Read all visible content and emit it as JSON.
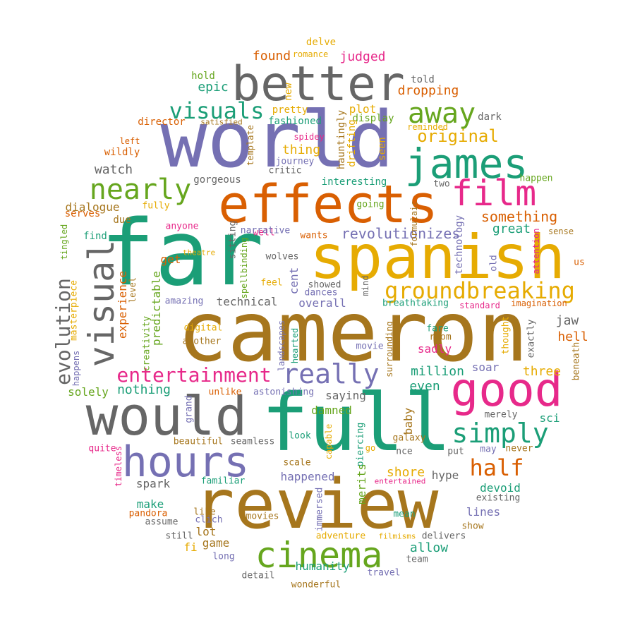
{
  "palette": {
    "teal": "#1b9e77",
    "orange": "#d95f02",
    "purple": "#7570b3",
    "pink": "#e7298a",
    "green": "#66a61e",
    "gold": "#e6ab02",
    "brown": "#a6761d",
    "gray": "#666666"
  },
  "words": [
    {
      "text": "cameron",
      "color": "#a6761d"
    },
    {
      "text": "far",
      "color": "#1b9e77"
    },
    {
      "text": "world",
      "color": "#7570b3"
    },
    {
      "text": "full",
      "color": "#1b9e77"
    },
    {
      "text": "review",
      "color": "#a6761d"
    },
    {
      "text": "spanish",
      "color": "#e6ab02"
    },
    {
      "text": "better",
      "color": "#666666"
    },
    {
      "text": "effects",
      "color": "#d95f02"
    },
    {
      "text": "would",
      "color": "#666666"
    },
    {
      "text": "good",
      "color": "#e7298a"
    },
    {
      "text": "james",
      "color": "#1b9e77"
    },
    {
      "text": "hours",
      "color": "#7570b3"
    },
    {
      "text": "cinema",
      "color": "#66a61e"
    },
    {
      "text": "visual",
      "color": "#666666"
    },
    {
      "text": "film",
      "color": "#e7298a"
    },
    {
      "text": "away",
      "color": "#66a61e"
    },
    {
      "text": "nearly",
      "color": "#66a61e"
    },
    {
      "text": "really",
      "color": "#7570b3"
    },
    {
      "text": "simply",
      "color": "#1b9e77"
    },
    {
      "text": "groundbreaking",
      "color": "#e6ab02"
    },
    {
      "text": "visuals",
      "color": "#1b9e77"
    },
    {
      "text": "half",
      "color": "#d95f02"
    },
    {
      "text": "entertainment",
      "color": "#e7298a"
    },
    {
      "text": "evolution",
      "color": "#666666"
    },
    {
      "text": "original",
      "color": "#e6ab02"
    },
    {
      "text": "revolutionizes",
      "color": "#7570b3"
    },
    {
      "text": "something",
      "color": "#d95f02"
    },
    {
      "text": "dropping",
      "color": "#d95f02"
    },
    {
      "text": "judged",
      "color": "#e7298a"
    },
    {
      "text": "found",
      "color": "#d95f02"
    },
    {
      "text": "romance",
      "color": "#e6ab02"
    },
    {
      "text": "delve",
      "color": "#e6ab02"
    },
    {
      "text": "epic",
      "color": "#1b9e77"
    },
    {
      "text": "hold",
      "color": "#66a61e"
    },
    {
      "text": "told",
      "color": "#666666"
    },
    {
      "text": "new",
      "color": "#e6ab02"
    },
    {
      "text": "pretty",
      "color": "#e6ab02"
    },
    {
      "text": "fashioned",
      "color": "#1b9e77"
    },
    {
      "text": "plot",
      "color": "#e6ab02"
    },
    {
      "text": "display",
      "color": "#66a61e"
    },
    {
      "text": "dark",
      "color": "#666666"
    },
    {
      "text": "director",
      "color": "#d95f02"
    },
    {
      "text": "satisfied",
      "color": "#a6761d"
    },
    {
      "text": "reminded",
      "color": "#e6ab02"
    },
    {
      "text": "left",
      "color": "#d95f02"
    },
    {
      "text": "wildly",
      "color": "#d95f02"
    },
    {
      "text": "watch",
      "color": "#666666"
    },
    {
      "text": "thing",
      "color": "#e6ab02"
    },
    {
      "text": "spidey",
      "color": "#e7298a"
    },
    {
      "text": "journey",
      "color": "#7570b3"
    },
    {
      "text": "critic",
      "color": "#666666"
    },
    {
      "text": "template",
      "color": "#a6761d"
    },
    {
      "text": "hauntingly",
      "color": "#a6761d"
    },
    {
      "text": "drifting",
      "color": "#e6ab02"
    },
    {
      "text": "seen",
      "color": "#e6ab02"
    },
    {
      "text": "gorgeous",
      "color": "#666666"
    },
    {
      "text": "interesting",
      "color": "#1b9e77"
    },
    {
      "text": "two",
      "color": "#666666"
    },
    {
      "text": "happen",
      "color": "#66a61e"
    },
    {
      "text": "dialogue",
      "color": "#a6761d"
    },
    {
      "text": "fully",
      "color": "#e6ab02"
    },
    {
      "text": "serves",
      "color": "#d95f02"
    },
    {
      "text": "due",
      "color": "#a6761d"
    },
    {
      "text": "find",
      "color": "#1b9e77"
    },
    {
      "text": "anyone",
      "color": "#e7298a"
    },
    {
      "text": "well",
      "color": "#e7298a"
    },
    {
      "text": "going",
      "color": "#66a61e"
    },
    {
      "text": "formulaic",
      "color": "#a6761d"
    },
    {
      "text": "technology",
      "color": "#7570b3"
    },
    {
      "text": "great",
      "color": "#1b9e77"
    },
    {
      "text": "sense",
      "color": "#a6761d"
    },
    {
      "text": "tingled",
      "color": "#66a61e"
    },
    {
      "text": "sitting",
      "color": "#666666"
    },
    {
      "text": "narrative",
      "color": "#7570b3"
    },
    {
      "text": "wants",
      "color": "#d95f02"
    },
    {
      "text": "attention",
      "color": "#e7298a"
    },
    {
      "text": "us",
      "color": "#d95f02"
    },
    {
      "text": "experience",
      "color": "#d95f02"
    },
    {
      "text": "get",
      "color": "#d95f02"
    },
    {
      "text": "theatre",
      "color": "#e6ab02"
    },
    {
      "text": "spellbinding",
      "color": "#66a61e"
    },
    {
      "text": "wolves",
      "color": "#666666"
    },
    {
      "text": "old",
      "color": "#7570b3"
    },
    {
      "text": "predictable",
      "color": "#66a61e"
    },
    {
      "text": "feel",
      "color": "#e6ab02"
    },
    {
      "text": "showed",
      "color": "#666666"
    },
    {
      "text": "dances",
      "color": "#7570b3"
    },
    {
      "text": "cent",
      "color": "#7570b3"
    },
    {
      "text": "mind",
      "color": "#666666"
    },
    {
      "text": "level",
      "color": "#a6761d"
    },
    {
      "text": "masterpiece",
      "color": "#e6ab02"
    },
    {
      "text": "amazing",
      "color": "#7570b3"
    },
    {
      "text": "technical",
      "color": "#666666"
    },
    {
      "text": "overall",
      "color": "#7570b3"
    },
    {
      "text": "breathtaking",
      "color": "#1b9e77"
    },
    {
      "text": "standard",
      "color": "#e7298a"
    },
    {
      "text": "imagination",
      "color": "#d95f02"
    },
    {
      "text": "jaw",
      "color": "#666666"
    },
    {
      "text": "hell",
      "color": "#d95f02"
    },
    {
      "text": "creativity",
      "color": "#66a61e"
    },
    {
      "text": "digital",
      "color": "#e6ab02"
    },
    {
      "text": "another",
      "color": "#a6761d"
    },
    {
      "text": "landscapes",
      "color": "#7570b3"
    },
    {
      "text": "hearted",
      "color": "#1b9e77"
    },
    {
      "text": "surrounding",
      "color": "#a6761d"
    },
    {
      "text": "fare",
      "color": "#1b9e77"
    },
    {
      "text": "room",
      "color": "#a6761d"
    },
    {
      "text": "thought",
      "color": "#e6ab02"
    },
    {
      "text": "exactly",
      "color": "#666666"
    },
    {
      "text": "beneath",
      "color": "#a6761d"
    },
    {
      "text": "sadly",
      "color": "#e7298a"
    },
    {
      "text": "movie",
      "color": "#7570b3"
    },
    {
      "text": "million",
      "color": "#1b9e77"
    },
    {
      "text": "soar",
      "color": "#7570b3"
    },
    {
      "text": "three",
      "color": "#e6ab02"
    },
    {
      "text": "happens",
      "color": "#7570b3"
    },
    {
      "text": "nothing",
      "color": "#1b9e77"
    },
    {
      "text": "solely",
      "color": "#66a61e"
    },
    {
      "text": "unlike",
      "color": "#d95f02"
    },
    {
      "text": "astonishing",
      "color": "#7570b3"
    },
    {
      "text": "saying",
      "color": "#666666"
    },
    {
      "text": "even",
      "color": "#1b9e77"
    },
    {
      "text": "grand",
      "color": "#7570b3"
    },
    {
      "text": "damned",
      "color": "#66a61e"
    },
    {
      "text": "baby",
      "color": "#a6761d"
    },
    {
      "text": "sci",
      "color": "#1b9e77"
    },
    {
      "text": "merely",
      "color": "#666666"
    },
    {
      "text": "beautiful",
      "color": "#a6761d"
    },
    {
      "text": "seamless",
      "color": "#666666"
    },
    {
      "text": "look",
      "color": "#1b9e77"
    },
    {
      "text": "capable",
      "color": "#e6ab02"
    },
    {
      "text": "piercing",
      "color": "#1b9e77"
    },
    {
      "text": "go",
      "color": "#e6ab02"
    },
    {
      "text": "nce",
      "color": "#666666"
    },
    {
      "text": "galaxy",
      "color": "#a6761d"
    },
    {
      "text": "put",
      "color": "#666666"
    },
    {
      "text": "may",
      "color": "#7570b3"
    },
    {
      "text": "never",
      "color": "#a6761d"
    },
    {
      "text": "quite",
      "color": "#e7298a"
    },
    {
      "text": "timeless",
      "color": "#e7298a"
    },
    {
      "text": "scale",
      "color": "#a6761d"
    },
    {
      "text": "shore",
      "color": "#e6ab02"
    },
    {
      "text": "merits",
      "color": "#66a61e"
    },
    {
      "text": "hype",
      "color": "#666666"
    },
    {
      "text": "spark",
      "color": "#666666"
    },
    {
      "text": "familiar",
      "color": "#1b9e77"
    },
    {
      "text": "happened",
      "color": "#7570b3"
    },
    {
      "text": "entertained",
      "color": "#e7298a"
    },
    {
      "text": "devoid",
      "color": "#1b9e77"
    },
    {
      "text": "existing",
      "color": "#666666"
    },
    {
      "text": "make",
      "color": "#1b9e77"
    },
    {
      "text": "immersed",
      "color": "#7570b3"
    },
    {
      "text": "lines",
      "color": "#7570b3"
    },
    {
      "text": "pandora",
      "color": "#d95f02"
    },
    {
      "text": "assume",
      "color": "#666666"
    },
    {
      "text": "like",
      "color": "#a6761d"
    },
    {
      "text": "clich",
      "color": "#7570b3"
    },
    {
      "text": "lot",
      "color": "#a6761d"
    },
    {
      "text": "movies",
      "color": "#a6761d"
    },
    {
      "text": "mean",
      "color": "#1b9e77"
    },
    {
      "text": "show",
      "color": "#a6761d"
    },
    {
      "text": "still",
      "color": "#666666"
    },
    {
      "text": "fi",
      "color": "#e6ab02"
    },
    {
      "text": "game",
      "color": "#a6761d"
    },
    {
      "text": "adventure",
      "color": "#e6ab02"
    },
    {
      "text": "filmisms",
      "color": "#e6ab02"
    },
    {
      "text": "allow",
      "color": "#1b9e77"
    },
    {
      "text": "delivers",
      "color": "#666666"
    },
    {
      "text": "humanity",
      "color": "#1b9e77"
    },
    {
      "text": "team",
      "color": "#666666"
    },
    {
      "text": "long",
      "color": "#7570b3"
    },
    {
      "text": "travel",
      "color": "#7570b3"
    },
    {
      "text": "detail",
      "color": "#666666"
    },
    {
      "text": "wonderful",
      "color": "#a6761d"
    }
  ]
}
